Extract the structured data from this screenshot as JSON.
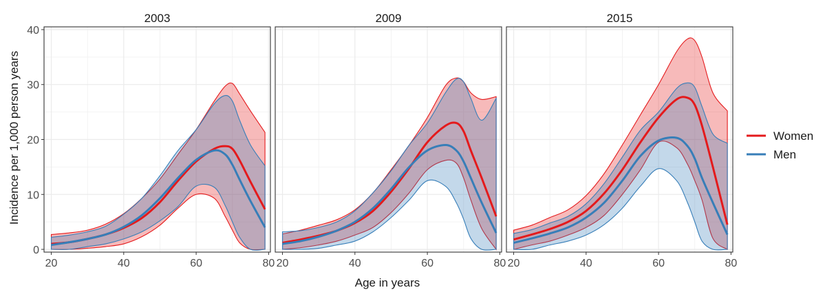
{
  "chart_data": {
    "type": "area",
    "xlabel": "Age in years",
    "ylabel": "Incidence per 1,000 person years",
    "xlim": [
      18,
      80.5
    ],
    "ylim": [
      -0.5,
      40.5
    ],
    "xticks": [
      20,
      40,
      60,
      80
    ],
    "yticks": [
      0,
      10,
      20,
      30,
      40
    ],
    "grid": true,
    "legend": {
      "position": "right"
    },
    "colors": {
      "Women": "#e41a1c",
      "Men": "#377eb8"
    },
    "facets": [
      {
        "title": "2003",
        "series": [
          {
            "name": "Women",
            "x": [
              20,
              25,
              30,
              35,
              40,
              45,
              50,
              55,
              60,
              65,
              68,
              70,
              72,
              75,
              79
            ],
            "y": [
              1.0,
              1.3,
              1.9,
              2.7,
              3.9,
              5.7,
              8.6,
              12.5,
              16.0,
              18.3,
              18.8,
              18.3,
              16.2,
              12.3,
              7.3
            ],
            "lower": [
              0,
              0,
              0.2,
              0.5,
              1.0,
              2.3,
              4.4,
              7.5,
              10.0,
              9.3,
              6.0,
              3.5,
              1.2,
              0,
              0
            ],
            "upper": [
              2.7,
              3.0,
              3.5,
              4.6,
              6.5,
              9.3,
              12.8,
              17.3,
              21.8,
              27.0,
              29.7,
              30.2,
              28.3,
              25.2,
              21.3
            ]
          },
          {
            "name": "Men",
            "x": [
              20,
              25,
              30,
              35,
              40,
              45,
              50,
              55,
              60,
              65,
              68,
              70,
              72,
              75,
              79
            ],
            "y": [
              0.8,
              1.3,
              1.9,
              2.7,
              4.1,
              6.2,
              9.3,
              13.0,
              16.3,
              18.0,
              17.3,
              15.4,
              12.7,
              8.8,
              4.0
            ],
            "lower": [
              0,
              0,
              0.5,
              1.0,
              1.9,
              3.2,
              5.2,
              7.8,
              11.5,
              11.3,
              8.0,
              5.0,
              2.2,
              0,
              0
            ],
            "upper": [
              2.2,
              2.6,
              3.2,
              4.2,
              6.4,
              9.3,
              13.4,
              18.0,
              21.8,
              26.5,
              28.0,
              27.0,
              23.5,
              19.0,
              15.2
            ]
          }
        ]
      },
      {
        "title": "2009",
        "series": [
          {
            "name": "Women",
            "x": [
              20,
              25,
              30,
              35,
              40,
              45,
              50,
              55,
              60,
              65,
              68,
              70,
              72,
              75,
              79
            ],
            "y": [
              1.2,
              1.8,
              2.5,
              3.4,
              4.8,
              7.0,
              10.5,
              14.8,
              19.5,
              22.5,
              23.0,
              21.5,
              18.0,
              13.0,
              6.0
            ],
            "lower": [
              0,
              0.3,
              0.8,
              1.5,
              2.6,
              4.0,
              6.7,
              10.3,
              14.5,
              16.2,
              15.7,
              13.0,
              9.0,
              3.8,
              0
            ],
            "upper": [
              2.8,
              3.5,
              4.4,
              5.4,
              7.2,
              10.3,
              14.5,
              19.0,
              24.0,
              29.8,
              31.2,
              30.5,
              28.5,
              27.3,
              27.8
            ]
          },
          {
            "name": "Men",
            "x": [
              20,
              25,
              30,
              35,
              40,
              45,
              50,
              55,
              60,
              65,
              68,
              70,
              72,
              75,
              79
            ],
            "y": [
              1.0,
              1.5,
              2.3,
              3.4,
              5.0,
              7.5,
              11.0,
              15.0,
              18.0,
              19.0,
              18.0,
              16.0,
              13.0,
              8.5,
              3.0
            ],
            "lower": [
              0,
              0,
              0.2,
              0.8,
              1.5,
              3.2,
              5.8,
              9.0,
              12.5,
              11.5,
              8.5,
              5.5,
              2.0,
              0,
              0
            ],
            "upper": [
              3.2,
              3.4,
              4.0,
              5.0,
              7.0,
              10.3,
              14.3,
              19.0,
              23.0,
              28.5,
              31.0,
              30.5,
              27.5,
              23.5,
              27.5
            ]
          }
        ]
      },
      {
        "title": "2015",
        "series": [
          {
            "name": "Women",
            "x": [
              20,
              25,
              30,
              35,
              40,
              45,
              50,
              55,
              60,
              65,
              68,
              70,
              72,
              75,
              79
            ],
            "y": [
              1.8,
              2.7,
              3.7,
              5.0,
              7.0,
              10.2,
              14.5,
              19.5,
              24.0,
              27.3,
              27.6,
              26.3,
              22.5,
              15.0,
              4.5
            ],
            "lower": [
              0,
              0.8,
              1.5,
              2.6,
              4.0,
              6.2,
              10.0,
              14.5,
              19.5,
              18.5,
              15.5,
              12.5,
              9.0,
              2.0,
              0
            ],
            "upper": [
              3.5,
              4.4,
              5.8,
              7.2,
              9.8,
              13.8,
              19.0,
              24.5,
              30.0,
              36.0,
              38.3,
              38.0,
              35.0,
              28.5,
              25.2
            ]
          },
          {
            "name": "Men",
            "x": [
              20,
              25,
              30,
              35,
              40,
              45,
              50,
              55,
              60,
              65,
              68,
              70,
              72,
              75,
              79
            ],
            "y": [
              1.2,
              2.0,
              2.9,
              4.0,
              5.8,
              8.5,
              12.5,
              17.0,
              19.8,
              20.3,
              18.8,
              16.5,
              13.0,
              8.5,
              2.7
            ],
            "lower": [
              0,
              0,
              0.8,
              1.5,
              2.6,
              4.5,
              7.5,
              11.5,
              14.7,
              12.5,
              8.5,
              5.0,
              1.5,
              0,
              0
            ],
            "upper": [
              2.9,
              3.6,
              4.8,
              6.0,
              8.3,
              12.0,
              16.8,
              21.7,
              25.0,
              29.3,
              30.3,
              29.5,
              26.0,
              21.0,
              19.3
            ]
          }
        ]
      }
    ]
  }
}
